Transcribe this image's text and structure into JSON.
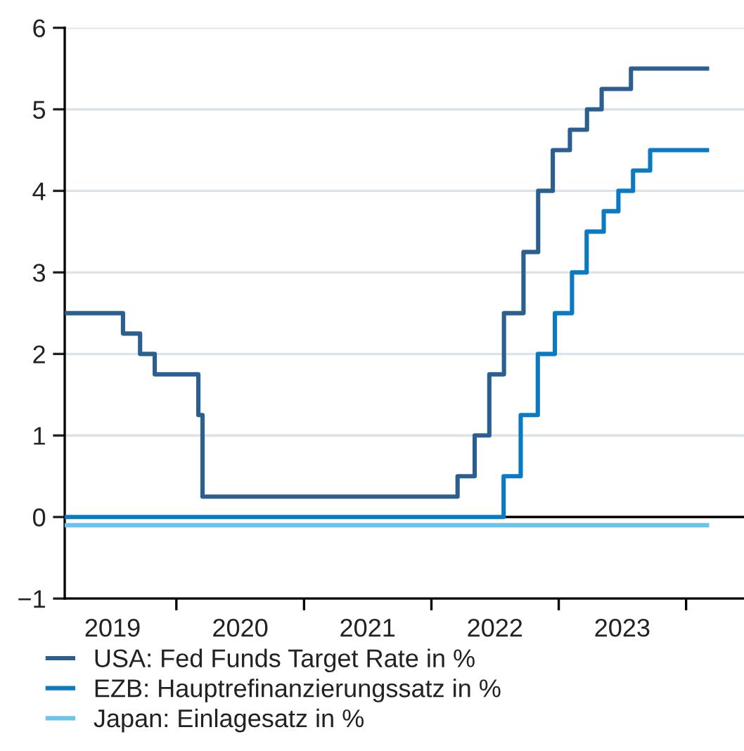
{
  "chart_data": {
    "type": "step",
    "xlim": [
      "2019-02-15",
      "2024-06-15"
    ],
    "ylim": [
      -1,
      6
    ],
    "yticks": [
      -1,
      0,
      1,
      2,
      3,
      4,
      5,
      6
    ],
    "xticks": [
      {
        "value": "2019-07-02",
        "label": "2019"
      },
      {
        "value": "2020-07-02",
        "label": "2020"
      },
      {
        "value": "2021-07-02",
        "label": "2021"
      },
      {
        "value": "2022-07-02",
        "label": "2022"
      },
      {
        "value": "2023-07-02",
        "label": "2023"
      },
      {
        "value": "2020-01-01",
        "label": null
      },
      {
        "value": "2021-01-01",
        "label": null
      },
      {
        "value": "2022-01-01",
        "label": null
      },
      {
        "value": "2023-01-01",
        "label": null
      },
      {
        "value": "2024-01-01",
        "label": null
      }
    ],
    "grid": "y",
    "legend": "bottom",
    "ref_lines": [
      {
        "axis": "y",
        "value": 0,
        "color": "#000000"
      }
    ],
    "series": [
      {
        "name": "USA: Fed Funds Target Rate in %",
        "color": "#2a5f8f",
        "x": [
          "2019-02-15",
          "2019-08-01",
          "2019-09-19",
          "2019-10-31",
          "2020-03-04",
          "2020-03-16",
          "2022-03-17",
          "2022-05-05",
          "2022-06-16",
          "2022-07-28",
          "2022-09-22",
          "2022-11-03",
          "2022-12-15",
          "2023-02-02",
          "2023-03-23",
          "2023-05-04",
          "2023-07-27",
          "2024-03-01"
        ],
        "values": [
          2.5,
          2.25,
          2.0,
          1.75,
          1.25,
          0.25,
          0.5,
          1.0,
          1.75,
          2.5,
          3.25,
          4.0,
          4.5,
          4.75,
          5.0,
          5.25,
          5.5,
          5.5
        ]
      },
      {
        "name": "EZB: Hauptrefinanzierungssatz in %",
        "color": "#0a7bc2",
        "x": [
          "2019-02-15",
          "2022-07-27",
          "2022-09-14",
          "2022-11-02",
          "2022-12-21",
          "2023-02-08",
          "2023-03-22",
          "2023-05-10",
          "2023-06-21",
          "2023-08-02",
          "2023-09-20",
          "2024-03-01"
        ],
        "values": [
          0,
          0.5,
          1.25,
          2.0,
          2.5,
          3.0,
          3.5,
          3.75,
          4.0,
          4.25,
          4.5,
          4.5
        ]
      },
      {
        "name": "Japan: Einlagesatz in %",
        "color": "#6cc4ea",
        "x": [
          "2019-02-15",
          "2024-03-01"
        ],
        "values": [
          -0.1,
          -0.1
        ]
      }
    ]
  }
}
